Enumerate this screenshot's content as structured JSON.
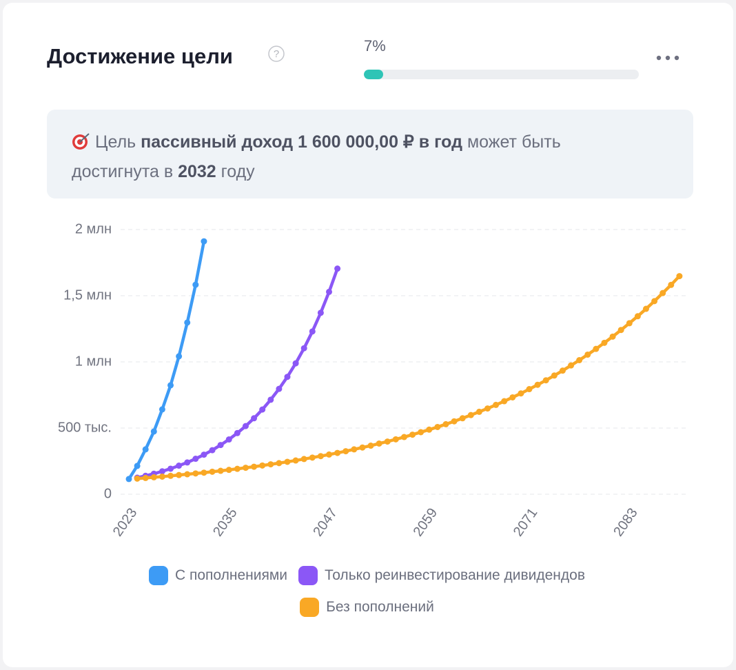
{
  "header": {
    "title": "Достижение цели",
    "progress": {
      "value": 7,
      "label": "7%"
    }
  },
  "info": {
    "prefix": "Цель",
    "goal": "пассивный доход 1 600 000,00 ₽ в год",
    "middle": "может быть достигнута в",
    "year": "2032",
    "suffix": "году"
  },
  "chart_data": {
    "type": "line",
    "xlim": [
      2023,
      2090
    ],
    "xticks": [
      2023,
      2035,
      2047,
      2059,
      2071,
      2083
    ],
    "ylim": [
      0,
      2000000
    ],
    "yticks": [
      0,
      {
        "value": 500000,
        "label": "500 тыс."
      },
      {
        "value": 1000000,
        "label": "1 млн"
      },
      {
        "value": 1500000,
        "label": "1,5 млн"
      },
      {
        "value": 2000000,
        "label": "2 млн"
      }
    ],
    "grid": true,
    "series": [
      {
        "name": "С пополнениями",
        "color": "#3d9bf5",
        "x": [
          2023,
          2024,
          2025,
          2026,
          2027,
          2028,
          2029,
          2030,
          2031,
          2032
        ],
        "values": [
          115000,
          214000,
          339000,
          474000,
          641000,
          823000,
          1042000,
          1297000,
          1583000,
          1911000
        ]
      },
      {
        "name": "Только реинвестирование дивидендов",
        "color": "#8b57f6",
        "x": [
          2024,
          2025,
          2026,
          2027,
          2028,
          2029,
          2030,
          2031,
          2032,
          2033,
          2034,
          2035,
          2036,
          2037,
          2038,
          2039,
          2040,
          2041,
          2042,
          2043,
          2044,
          2045,
          2046,
          2047,
          2048
        ],
        "values": [
          125000,
          139000,
          155000,
          173000,
          193000,
          216000,
          240000,
          268000,
          299000,
          333000,
          372000,
          414000,
          462000,
          515000,
          574000,
          640000,
          714000,
          796000,
          887000,
          989000,
          1103000,
          1230000,
          1371000,
          1529000,
          1705000
        ]
      },
      {
        "name": "Без пополнений",
        "color": "#f9a825",
        "x": [
          2024,
          2025,
          2026,
          2027,
          2028,
          2029,
          2030,
          2031,
          2032,
          2033,
          2034,
          2035,
          2036,
          2037,
          2038,
          2039,
          2040,
          2041,
          2042,
          2043,
          2044,
          2045,
          2046,
          2047,
          2048,
          2049,
          2050,
          2051,
          2052,
          2053,
          2054,
          2055,
          2056,
          2057,
          2058,
          2059,
          2060,
          2061,
          2062,
          2063,
          2064,
          2065,
          2066,
          2067,
          2068,
          2069,
          2070,
          2071,
          2072,
          2073,
          2074,
          2075,
          2076,
          2077,
          2078,
          2079,
          2080,
          2081,
          2082,
          2083,
          2084,
          2085,
          2086,
          2087,
          2088,
          2089
        ],
        "values": [
          118000,
          123000,
          128000,
          133000,
          139000,
          145000,
          151000,
          157000,
          163000,
          170000,
          177000,
          184000,
          192000,
          200000,
          208000,
          217000,
          226000,
          235000,
          245000,
          255000,
          266000,
          277000,
          288000,
          300000,
          312000,
          325000,
          339000,
          353000,
          367000,
          383000,
          398000,
          415000,
          432000,
          450000,
          469000,
          488000,
          508000,
          529000,
          551000,
          574000,
          598000,
          623000,
          648000,
          675000,
          703000,
          732000,
          762000,
          794000,
          827000,
          861000,
          897000,
          934000,
          973000,
          1013000,
          1055000,
          1098000,
          1144000,
          1191000,
          1241000,
          1292000,
          1345000,
          1401000,
          1459000,
          1520000,
          1582000,
          1648000
        ]
      }
    ]
  }
}
